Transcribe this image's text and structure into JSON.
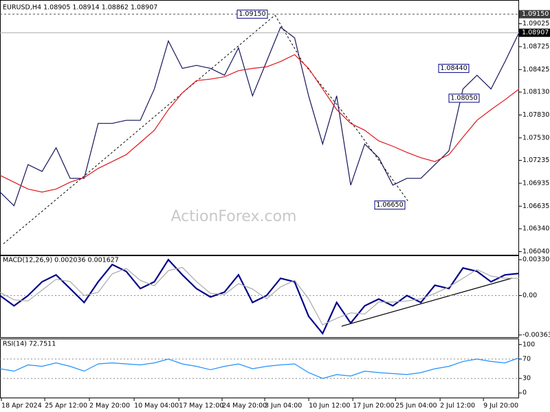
{
  "chart_data": [
    {
      "type": "line",
      "title": "EURUSD,H4  1.08905 1.08914 1.08862 1.08907",
      "watermark": "ActionForex.com",
      "xlim": [
        0,
        37
      ],
      "xticks": [
        {
          "value": 0.1,
          "label": "18 Apr 2024"
        },
        {
          "value": 3.19,
          "label": "25 Apr 12:00"
        },
        {
          "value": 6.37,
          "label": "2 May 20:00"
        },
        {
          "value": 9.56,
          "label": "10 May 04:00"
        },
        {
          "value": 12.75,
          "label": "17 May 12:00"
        },
        {
          "value": 15.83,
          "label": "24 May 20:00"
        },
        {
          "value": 18.87,
          "label": "3 Jun 04:00"
        },
        {
          "value": 22.01,
          "label": "10 Jun 12:00"
        },
        {
          "value": 25.15,
          "label": "17 Jun 20:00"
        },
        {
          "value": 28.19,
          "label": "25 Jun 04:00"
        },
        {
          "value": 31.37,
          "label": "2 Jul 12:00"
        },
        {
          "value": 34.46,
          "label": "9 Jul 20:00"
        }
      ],
      "ylim": [
        1.0599,
        1.093
      ],
      "yticks": [
        {
          "value": 1.09025,
          "label": "1.09025"
        },
        {
          "value": 1.08725,
          "label": "1.08725"
        },
        {
          "value": 1.08425,
          "label": "1.08425"
        },
        {
          "value": 1.0813,
          "label": "1.08130"
        },
        {
          "value": 1.0783,
          "label": "1.07830"
        },
        {
          "value": 1.0753,
          "label": "1.07530"
        },
        {
          "value": 1.07235,
          "label": "1.07235"
        },
        {
          "value": 1.06935,
          "label": "1.06935"
        },
        {
          "value": 1.06635,
          "label": "1.06635"
        },
        {
          "value": 1.0634,
          "label": "1.06340"
        },
        {
          "value": 1.0604,
          "label": "1.06040"
        }
      ],
      "series": [
        {
          "color": "#14145a",
          "values": [
            1.0682,
            1.0664,
            1.0718,
            1.0709,
            1.074,
            1.07,
            1.07,
            1.0772,
            1.0772,
            1.0776,
            1.0776,
            1.0817,
            1.088,
            1.0844,
            1.0848,
            1.0844,
            1.0835,
            1.0871,
            1.0808,
            1.0853,
            1.0898,
            1.0884,
            1.0808,
            1.0745,
            1.0808,
            1.0691,
            1.0745,
            1.0727,
            1.0691,
            1.07,
            1.07,
            1.0718,
            1.0736,
            1.0817,
            1.0835,
            1.0817,
            1.0853,
            1.0891
          ]
        },
        {
          "color": "#e0151b",
          "values": [
            1.0704,
            1.0695,
            1.0686,
            1.0682,
            1.0686,
            1.0695,
            1.0701,
            1.0713,
            1.0722,
            1.0731,
            1.0747,
            1.0763,
            1.079,
            1.0812,
            1.0828,
            1.083,
            1.0833,
            1.0841,
            1.0844,
            1.0846,
            1.0853,
            1.0862,
            1.0844,
            1.0817,
            1.079,
            1.0772,
            1.0763,
            1.0749,
            1.0742,
            1.0734,
            1.0727,
            1.0722,
            1.0731,
            1.0754,
            1.0776,
            1.079,
            1.0803,
            1.0817
          ]
        }
      ],
      "levels": [
        {
          "value": 1.0915,
          "label": "1.09150",
          "color": "#3c3c3c"
        },
        {
          "value": 1.08907,
          "label": "1.08907",
          "color": "#000000"
        }
      ],
      "annotations": [
        {
          "value": 1.0915,
          "label": "1.09150"
        },
        {
          "value": 1.0844,
          "label": "1.08440"
        },
        {
          "value": 1.0805,
          "label": "1.08050"
        },
        {
          "value": 1.0665,
          "label": "1.06650"
        }
      ]
    },
    {
      "type": "line",
      "title": "MACD(12,26,9) 0.002036 0.001627",
      "xlim": [
        0,
        37
      ],
      "ylim": [
        -0.0039,
        0.0037
      ],
      "yticks": [
        {
          "value": 0.003308,
          "label": "0.003308"
        },
        {
          "value": 0,
          "label": "0.00"
        },
        {
          "value": -0.003635,
          "label": "-0.003635"
        }
      ],
      "levels": [
        0
      ],
      "series": [
        {
          "color": "#00008b",
          "values": [
            0,
            -0.00095,
            0,
            0.00127,
            0.00191,
            0.00064,
            -0.00064,
            0.00127,
            0.00286,
            0.00223,
            0.00064,
            0.00127,
            0.00331,
            0.00191,
            0.00064,
            -0.00013,
            0.00032,
            0.00191,
            -0.00064,
            0,
            0.00159,
            0.00127,
            -0.00191,
            -0.0035,
            -0.00064,
            -0.00254,
            -0.00095,
            -0.00032,
            -0.00095,
            0,
            -0.00064,
            0.00095,
            0.00064,
            0.00254,
            0.00223,
            0.00127,
            0.00191,
            0.00204
          ]
        },
        {
          "color": "#a9a9a9",
          "values": [
            0.0003,
            -0.0004,
            -0.0005,
            0.0005,
            0.0015,
            0.0013,
            0,
            0.0003,
            0.002,
            0.0025,
            0.0014,
            0.0009,
            0.0023,
            0.0026,
            0.0013,
            0.0002,
            0.0001,
            0.0011,
            0.0006,
            -0.0003,
            0.0008,
            0.0014,
            -0.0003,
            -0.0027,
            -0.0021,
            -0.0016,
            -0.0017,
            -0.0006,
            -0.0006,
            -0.0005,
            -0.0003,
            0.0002,
            0.0008,
            0.0016,
            0.0024,
            0.0018,
            0.0016,
            0.0016
          ]
        }
      ]
    },
    {
      "type": "line",
      "title": "RSI(14) 72.7511",
      "xlim": [
        0,
        37
      ],
      "ylim": [
        -11,
        111
      ],
      "yticks": [
        100,
        70,
        30,
        0
      ],
      "levels": [
        70,
        30
      ],
      "series": [
        {
          "color": "#1e90ff",
          "values": [
            50,
            45,
            58,
            55,
            62,
            55,
            45,
            60,
            62,
            60,
            58,
            62,
            70,
            60,
            55,
            48,
            55,
            60,
            50,
            55,
            58,
            60,
            42,
            30,
            38,
            35,
            45,
            42,
            40,
            38,
            42,
            50,
            55,
            65,
            70,
            65,
            62,
            72.75
          ]
        }
      ]
    }
  ]
}
